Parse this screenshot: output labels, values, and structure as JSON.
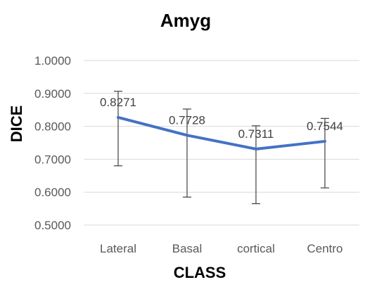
{
  "chart_data": {
    "type": "line",
    "title": "Amyg",
    "xlabel": "CLASS",
    "ylabel": "DICE",
    "categories": [
      "Lateral",
      "Basal",
      "cortical",
      "Centro"
    ],
    "series": [
      {
        "values": [
          0.8271,
          0.7728,
          0.7311,
          0.7544
        ],
        "data_labels": [
          "0.8271",
          "0.7728",
          "0.7311",
          "0.7544"
        ],
        "error_upper": [
          0.9065,
          0.8525,
          0.8015,
          0.824
        ],
        "error_lower": [
          0.68,
          0.585,
          0.565,
          0.613
        ]
      }
    ],
    "ylim": [
      0.5,
      1.0
    ],
    "yticks": [
      "0.5000",
      "0.6000",
      "0.7000",
      "0.8000",
      "0.9000",
      "1.0000"
    ],
    "ytick_values": [
      0.5,
      0.6,
      0.7,
      0.8,
      0.9,
      1.0
    ],
    "grid": true,
    "legend": "none",
    "colors": {
      "series": "#4472C4",
      "grid": "#d9d9d9",
      "error_bar": "#404040"
    }
  }
}
